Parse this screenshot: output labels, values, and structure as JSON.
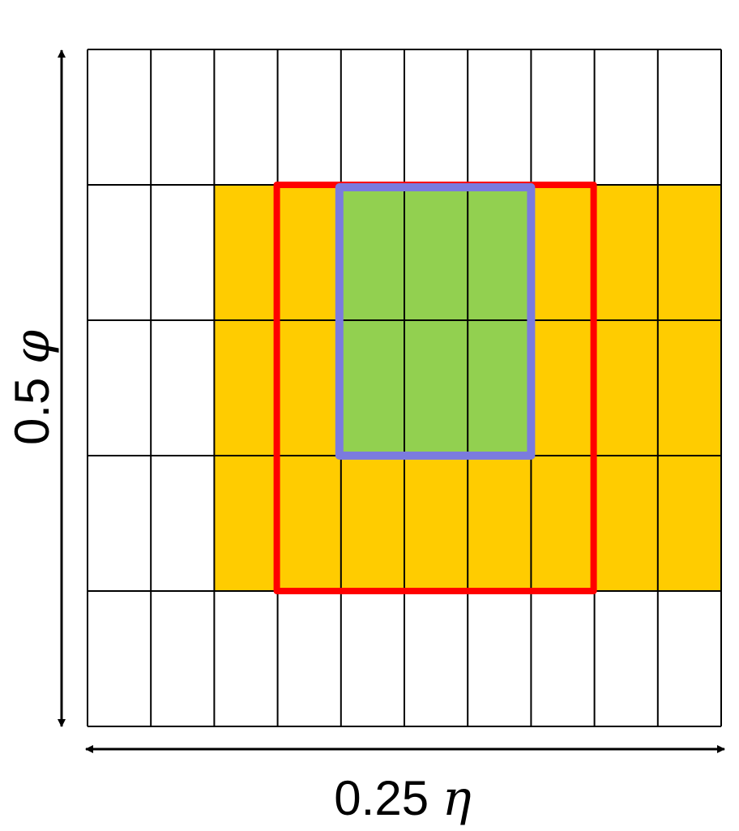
{
  "diagram": {
    "grid": {
      "columns": 10,
      "rows": 5
    },
    "yellow_cells": [
      [
        1,
        2
      ],
      [
        1,
        3
      ],
      [
        1,
        4
      ],
      [
        1,
        5
      ],
      [
        1,
        6
      ],
      [
        1,
        7
      ],
      [
        1,
        8
      ],
      [
        1,
        9
      ],
      [
        2,
        2
      ],
      [
        2,
        3
      ],
      [
        2,
        4
      ],
      [
        2,
        5
      ],
      [
        2,
        6
      ],
      [
        2,
        7
      ],
      [
        2,
        8
      ],
      [
        2,
        9
      ],
      [
        3,
        2
      ],
      [
        3,
        3
      ],
      [
        3,
        4
      ],
      [
        3,
        5
      ],
      [
        3,
        6
      ],
      [
        3,
        7
      ],
      [
        3,
        8
      ],
      [
        3,
        9
      ]
    ],
    "green_cells": [
      [
        1,
        4
      ],
      [
        1,
        5
      ],
      [
        1,
        6
      ],
      [
        2,
        4
      ],
      [
        2,
        5
      ],
      [
        2,
        6
      ]
    ],
    "red_box_cells": {
      "col_start": 3,
      "col_end": 7,
      "row_start": 1,
      "row_end": 3
    },
    "blue_box_cells": {
      "col_start": 4,
      "col_end": 6,
      "row_start": 1,
      "row_end": 2
    },
    "colors": {
      "yellow": "#FFCC00",
      "green": "#92D050",
      "red": "#FF0000",
      "blue": "#7B7BDE",
      "grid_line": "#000000",
      "background": "#FFFFFF"
    }
  },
  "labels": {
    "y_axis_value": "0.5",
    "y_axis_symbol": "φ",
    "x_axis_value": "0.25",
    "x_axis_symbol": "η"
  }
}
